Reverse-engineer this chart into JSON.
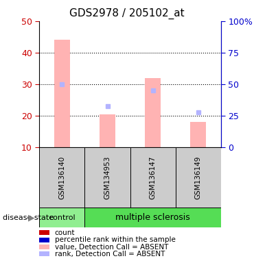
{
  "title": "GDS2978 / 205102_at",
  "samples": [
    "GSM136140",
    "GSM134953",
    "GSM136147",
    "GSM136149"
  ],
  "bar_values": [
    44.0,
    20.5,
    32.0,
    18.0
  ],
  "rank_values": [
    30.0,
    23.0,
    28.0,
    21.0
  ],
  "bar_color_absent": "#ffb3b3",
  "rank_color_absent": "#b3b3ff",
  "left_ylim": [
    10,
    50
  ],
  "left_yticks": [
    10,
    20,
    30,
    40,
    50
  ],
  "right_ylim_labels": [
    "0",
    "25",
    "50",
    "75",
    "100%"
  ],
  "left_tick_color": "#cc0000",
  "right_tick_color": "#0000cc",
  "group_control_color": "#90ee90",
  "group_ms_color": "#55dd55",
  "sample_box_color": "#cccccc",
  "legend_items": [
    {
      "color": "#cc0000",
      "label": "count"
    },
    {
      "color": "#0000cc",
      "label": "percentile rank within the sample"
    },
    {
      "color": "#ffb3b3",
      "label": "value, Detection Call = ABSENT"
    },
    {
      "color": "#b3b3ff",
      "label": "rank, Detection Call = ABSENT"
    }
  ],
  "disease_state_label": "disease state",
  "control_label": "control",
  "ms_label": "multiple sclerosis"
}
